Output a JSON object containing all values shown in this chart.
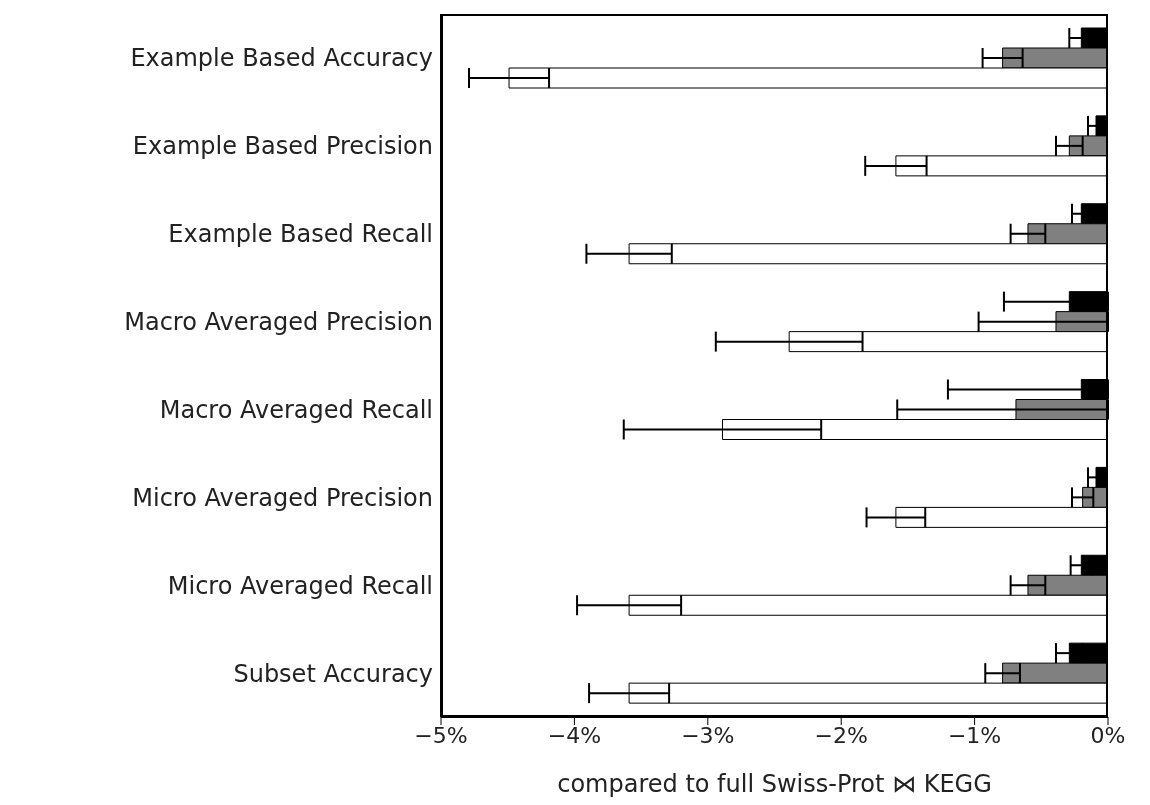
{
  "chart_data": {
    "type": "bar",
    "orientation": "horizontal",
    "xlabel": "compared to full Swiss-Prot ⋈ KEGG",
    "categories": [
      "Example Based Accuracy",
      "Example Based Precision",
      "Example Based Recall",
      "Macro Averaged Precision",
      "Macro Averaged Recall",
      "Micro Averaged Precision",
      "Micro Averaged Recall",
      "Subset Accuracy"
    ],
    "series": [
      {
        "color": "#000000",
        "values": [
          -0.2,
          -0.09,
          -0.2,
          -0.29,
          -0.2,
          -0.09,
          -0.2,
          -0.29
        ],
        "errors": [
          0.09,
          0.06,
          0.07,
          [
            -0.78,
            0
          ],
          [
            -1.2,
            0
          ],
          0.06,
          0.08,
          0.1
        ]
      },
      {
        "color": "#808080",
        "values": [
          -0.79,
          -0.29,
          -0.6,
          -0.39,
          -0.69,
          -0.19,
          -0.6,
          -0.79
        ],
        "errors": [
          0.15,
          0.1,
          0.13,
          [
            -0.97,
            0
          ],
          [
            -1.58,
            0
          ],
          0.08,
          0.13,
          0.13
        ]
      },
      {
        "color": "#ffffff",
        "values": [
          -4.49,
          -1.59,
          -3.59,
          -2.39,
          -2.89,
          -1.59,
          -3.59,
          -3.59
        ],
        "errors": [
          0.3,
          0.23,
          0.32,
          0.55,
          0.74,
          0.22,
          0.39,
          0.3
        ]
      }
    ],
    "xlim": [
      -5,
      0
    ],
    "xticks": [
      {
        "value": -5,
        "label": "−5%"
      },
      {
        "value": -4,
        "label": "−4%"
      },
      {
        "value": -3,
        "label": "−3%"
      },
      {
        "value": -2,
        "label": "−2%"
      },
      {
        "value": -1,
        "label": "−1%"
      },
      {
        "value": 0,
        "label": "0%"
      }
    ],
    "grid": false,
    "legend": false
  }
}
